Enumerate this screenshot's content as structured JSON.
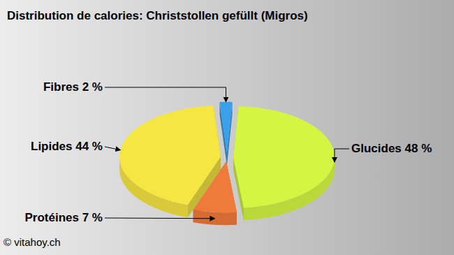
{
  "chart_data": {
    "type": "pie",
    "title": "Distribution de calories: Christstollen gefüllt (Migros)",
    "categories": [
      "Glucides",
      "Protéines",
      "Lipides",
      "Fibres"
    ],
    "values": [
      48,
      7,
      44,
      2
    ],
    "value_labels": [
      "48 %",
      "7 %",
      "44 %",
      "2 %"
    ],
    "colors": [
      "#d4f542",
      "#f07a3a",
      "#f5e642",
      "#3aa0e8"
    ],
    "data_labels": true,
    "source": "© vitahoy.ch"
  }
}
